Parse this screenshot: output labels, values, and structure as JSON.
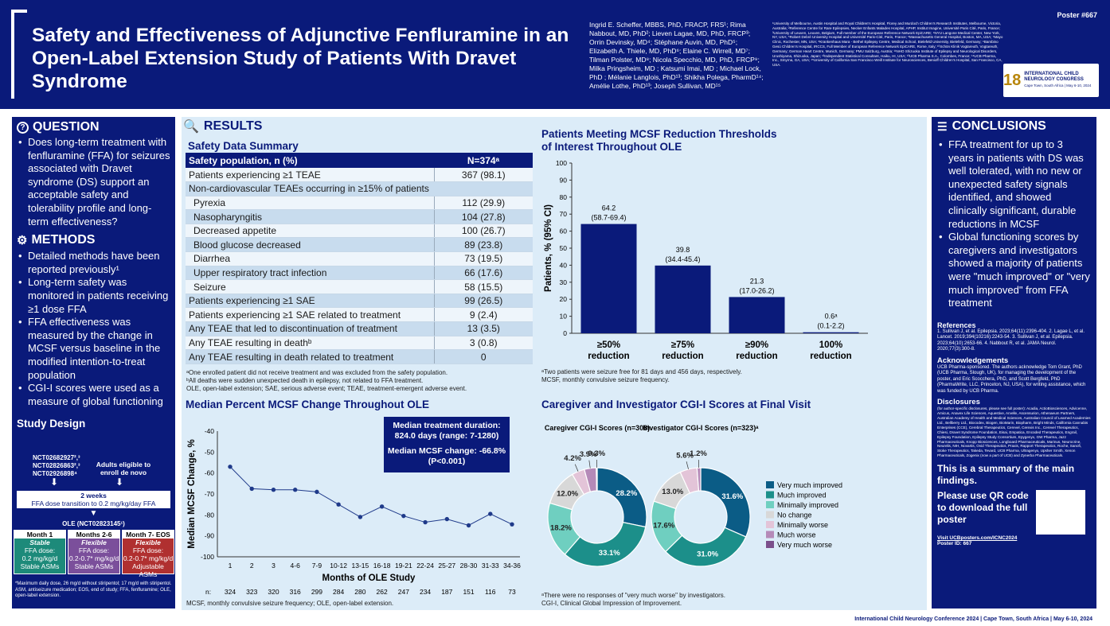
{
  "header": {
    "title": "Safety and Effectiveness of Adjunctive Fenfluramine in an Open-Label Extension Study of Patients With Dravet Syndrome",
    "poster_no": "Poster #667",
    "authors": "Ingrid E. Scheffer, MBBS, PhD, FRACP, FRS¹; Rima Nabbout, MD, PhD²; Lieven Lagae, MD, PhD, FRCP³; Orrin Devinsky, MD⁴; Stéphane Auvin, MD, PhD⁵; Elizabeth A. Thiele, MD, PhD⁶; Elaine C. Wirrell, MD⁷; Tilman Polster, MD⁸; Nicola Specchio, MD, PhD, FRCP⁹; Milka Pringsheim, MD ; Katsumi Imai, MD ; Michael Lock, PhD ; Mélanie Langlois, PhD¹³; Shikha Polega, PharmD¹⁴; Amélie Lothe, PhD¹³; Joseph Sullivan, MD¹⁵",
    "affiliations": "¹University of Melbourne, Austin Hospital and Royal Children's Hospital, Florey and Murdoch Children's Research Institutes, Melbourne, Victoria, Australia; ²Reference Centre for Rare Epilepsies, Necker Enfants Malades Hospital, APHP, Institut Imagine, Université Paris Cité, Paris, France; ³University of Leuven, Leuven, Belgium, Full member of the European Reference Network EpiCARE; ⁴NYU Langone Medical Center, New York, NY, USA; ⁵Robert Debré University Hospital and Université Paris-Cité, Paris, France; ⁶Massachusetts General Hospital, Boston, MA, USA; ⁷Mayo Clinic, Rochester, MN, USA; ⁸Krankenhaus Mara - Bethel Epilepsy Centre, Medical School, Bielefeld University, Bielefeld, Germany; ⁹Bambino Gesù Children's Hospital, IRCCS, Full Member of European Reference Network EpiCARE, Rome, Italy; ¹⁰Schön Klinik Vogtareuth, Vogtareuth, Germany; German Heart Centre, Munich, Germany; PMU Salzburg, Austria; ¹¹NHO Shizuoka Institute of Epilepsy and Neurological Disorders, Urushiyama, Shizuoka, Japan; ¹²Independent Statistical Consultant, Haiku, HI, USA; ¹³UCB Pharma S.A., Colombes, France; ¹⁴UCB Pharma, Inc., Smyrna, GA, USA; ¹⁵University of California San Francisco Weill Institute for Neurosciences, Benioff Children's Hospital, San Francisco, CA, USA.",
    "logo_number": "18",
    "logo_text": "INTERNATIONAL CHILD NEUROLOGY CONGRESS",
    "logo_sub": "Cape Town, South Africa | May 6-10, 2024"
  },
  "question": {
    "heading": "QUESTION",
    "bullets": [
      "Does long-term treatment with fenfluramine (FFA) for seizures associated with Dravet syndrome (DS) support an acceptable safety and tolerability profile and long-term effectiveness?"
    ]
  },
  "methods": {
    "heading": "METHODS",
    "bullets": [
      "Detailed methods have been reported previously¹",
      "Long-term safety was monitored in patients receiving ≥1 dose FFA",
      "FFA effectiveness was measured by the change in MCSF versus baseline in the modified intention-to-treat population",
      "CGI-I scores were used as a measure of global functioning"
    ]
  },
  "study_design": {
    "heading": "Study Design",
    "ncts": [
      "NCT02682927²,³",
      "NCT02826863²,³",
      "NCT02926898⁴"
    ],
    "adults": "Adults eligible to enroll de novo",
    "weeks": "2 weeks",
    "transition": "FFA dose transition to 0.2 mg/kg/day FFA",
    "ole": "OLE (NCT02823145¹)",
    "boxes": [
      {
        "h": "Month 1",
        "t": "Stable",
        "d": "FFA dose:",
        "d2": "0.2 mg/kg/d",
        "d3": "Stable ASMs"
      },
      {
        "h": "Months 2-6",
        "t": "Flexible",
        "d": "FFA dose:",
        "d2": "0.2-0.7* mg/kg/d",
        "d3": "Stable ASMs"
      },
      {
        "h": "Month 7- EOS",
        "t": "Flexible",
        "d": "FFA dose:",
        "d2": "0.2-0.7* mg/kg/d",
        "d3": "Adjustable ASMs"
      }
    ],
    "foot": "*Maximum daily dose, 26 mg/d without stiripentol; 17 mg/d with stiripentol.",
    "abbr": "ASM, antiseizure medication; EOS, end of study; FFA, fenfluramine; OLE, open-label extension."
  },
  "results": {
    "heading": "RESULTS",
    "safety_title": "Safety Data Summary",
    "col1": "Safety population, n (%)",
    "col2": "N=374ᵃ",
    "rows": [
      [
        "Patients experiencing ≥1 TEAE",
        "367 (98.1)"
      ],
      [
        "Non-cardiovascular TEAEs occurring in ≥15% of patients",
        ""
      ],
      [
        "Pyrexia",
        "112 (29.9)"
      ],
      [
        "Nasopharyngitis",
        "104 (27.8)"
      ],
      [
        "Decreased appetite",
        "100 (26.7)"
      ],
      [
        "Blood glucose decreased",
        "89 (23.8)"
      ],
      [
        "Diarrhea",
        "73 (19.5)"
      ],
      [
        "Upper respiratory tract infection",
        "66 (17.6)"
      ],
      [
        "Seizure",
        "58 (15.5)"
      ],
      [
        "Patients experiencing ≥1 SAE",
        "99 (26.5)"
      ],
      [
        "Patients experiencing ≥1 SAE related to treatment",
        "9 (2.4)"
      ],
      [
        "Any TEAE that led to discontinuation of treatment",
        "13 (3.5)"
      ],
      [
        "Any TEAE resulting in deathᵇ",
        "3 (0.8)"
      ],
      [
        "Any TEAE resulting in death related to treatment",
        "0"
      ]
    ],
    "fn1": "ᵃOne enrolled patient did not receive treatment and was excluded from the safety population.",
    "fn2": "ᵇAll deaths were sudden unexpected death in epilepsy, not related to FFA treatment.",
    "fn3": "OLE, open-label extension; SAE, serious adverse event; TEAE, treatment-emergent adverse event."
  },
  "line_chart": {
    "title": "Median Percent MCSF Change Throughout OLE",
    "callout1": "Median treatment duration: 824.0 days (range: 7-1280)",
    "callout2": "Median MCSF change: -66.8% (P<0.001)",
    "foot": "MCSF, monthly convulsive seizure frequency; OLE, open-label extension.",
    "n_label": "n:"
  },
  "bar_chart": {
    "title": "Patients Meeting MCSF Reduction Thresholds of Interest Throughout OLE",
    "foot1": "ᵃTwo patients were seizure free for 81 days and 456 days, respectively.",
    "foot2": "MCSF, monthly convulsive seizure frequency."
  },
  "cgi": {
    "title": "Caregiver and Investigator CGI-I Scores at Final Visit",
    "foot1": "ᵃThere were no responses of \"very much worse\" by investigators.",
    "foot2": "CGI-I, Clinical Global Impression of Improvement."
  },
  "conclusions": {
    "heading": "CONCLUSIONS",
    "bullets": [
      "FFA treatment for up to 3 years in patients with DS was well tolerated, with no new or unexpected safety signals identified, and showed clinically significant, durable reductions in MCSF",
      "Global functioning scores by caregivers and investigators showed a majority of patients were \"much improved\" or \"very much improved\" from FFA treatment"
    ],
    "refs_h": "References",
    "refs": "1. Sullivan J, et al. Epilepsia. 2023;64(11):2396-404. 2. Lagae L, et al. Lancet. 2019;394(10216):2243-54. 3. Sullivan J, et al. Epilepsia. 2023;64(10):2653-66. 4. Nabbout R, et al. JAMA Neurol. 2020;77(3):300-8.",
    "ack_h": "Acknowledgements",
    "ack": "UCB Pharma-sponsored. The authors acknowledge Tom Grant, PhD (UCB Pharma, Slough, UK), for managing the development of the poster, and Eric Scocchera, PhD, and Scott Bergfeld, PhD (PharmaWrite, LLC, Princeton, NJ, USA), for writing assistance, which was funded by UCB Pharma.",
    "disc_h": "Disclosures",
    "disc": "(for author-specific disclosures, please see full poster): Acadia, ActioBiosciences, Advicenne, Amicus, Anavex Life Sciences, Aquestive, Arvelle, Ascensurion, Athenaeum Partners, Australian Academy of Health and Medical Sciences, Australian Council of Learned Academies Ltd., Bellberry Ltd., Biocodex, Biogen, BioMarin, Biopharm, Bright Minds, California Cannabis Enterprises (CCE), Cerebral Therapeutics, Cerevel, Cerexis Inc., Cerevel Therapeutics, Chiesi, Dravet Syndrome Foundation, Eisai, Empatica, Encoded Therapeutics, Engrail, Epilepsy Foundation, Epilepsy Study Consortium, Epygenyx, GW Pharma, Jazz Pharmaceuticals, Knopp Biosciences, Longboard Pharmaceuticals, Marinus, Neurocrine, Neurelis, NIH, Novartis, Ovid Therapeutics, Praxis, Rapport Therapeutics, Roche, Sanofi, Stoke Therapeutics, Takeda, Tevard, UCB Pharma, Ultragenyx, Upsher Smith, Xenon Pharmaceuticals, Zogenix (now a part of UCB) and Zynerba Pharmaceuticals.",
    "summary": "This is a summary of the main findings.",
    "qr_text": "Please use QR code to download the full poster",
    "visit": "Visit UCBposters.com/ICNC2024",
    "poster_id": "Poster ID: 667"
  },
  "footer": "International Child Neurology Conference 2024 | Cape Town, South Africa | May 6-10, 2024",
  "colors": {
    "navy": "#0a1a7a",
    "panel": "#dcecf8",
    "very_much_improved": "#0b5c86",
    "much_improved": "#1c8f8a",
    "minimally_improved": "#6fcfc0",
    "no_change": "#d8d8d8",
    "minimally_worse": "#e3c4d8",
    "much_worse": "#b58ab8",
    "very_much_worse": "#7b4f8b",
    "month1": "#1d8a7a",
    "months2_6": "#7b4f9b",
    "month7": "#b03030"
  },
  "chart_data": [
    {
      "type": "line",
      "title": "Median Percent MCSF Change Throughout OLE",
      "xlabel": "Months of OLE Study",
      "ylabel": "Median MCSF Change, %",
      "ylim": [
        -100,
        -40
      ],
      "yticks": [
        -40,
        -50,
        -60,
        -70,
        -80,
        -90,
        -100
      ],
      "categories": [
        "1",
        "2",
        "3",
        "4-6",
        "7-9",
        "10-12",
        "13-15",
        "16-18",
        "19-21",
        "22-24",
        "25-27",
        "28-30",
        "31-33",
        "34-36"
      ],
      "values": [
        -57,
        -67.5,
        -68,
        -68,
        -69,
        -75,
        -81,
        -76,
        -80.5,
        -83.5,
        -82,
        -85,
        -79.5,
        -84.5
      ],
      "n": [
        "324",
        "323",
        "320",
        "316",
        "299",
        "284",
        "280",
        "262",
        "247",
        "234",
        "187",
        "151",
        "116",
        "73"
      ]
    },
    {
      "type": "bar",
      "title": "Patients Meeting MCSF Reduction Thresholds of Interest Throughout OLE",
      "ylabel": "Patients, % (95% CI)",
      "ylim": [
        0,
        100
      ],
      "yticks": [
        0,
        10,
        20,
        30,
        40,
        50,
        60,
        70,
        80,
        90,
        100
      ],
      "categories": [
        "≥50% reduction",
        "≥75% reduction",
        "≥90% reduction",
        "100% reduction"
      ],
      "values": [
        64.2,
        39.8,
        21.3,
        0.6
      ],
      "labels": [
        "64.2",
        "39.8",
        "21.3",
        "0.6ᵃ"
      ],
      "ci": [
        "(58.7-69.4)",
        "(34.4-45.4)",
        "(17.0-26.2)",
        "(0.1-2.2)"
      ]
    },
    {
      "type": "pie",
      "title": "Caregiver CGI-I Scores (n=308)",
      "labels": [
        "Very much improved",
        "Much improved",
        "Minimally improved",
        "No change",
        "Minimally worse",
        "Much worse",
        "Very much worse"
      ],
      "values": [
        28.2,
        33.1,
        18.2,
        12.0,
        4.2,
        3.9,
        0.3
      ],
      "display": [
        "28.2%",
        "33.1%",
        "18.2%",
        "12.0%",
        "4.2%",
        "3.9%",
        "0.3%"
      ]
    },
    {
      "type": "pie",
      "title": "Investigator CGI-I Scores (n=323)ᵃ",
      "labels": [
        "Very much improved",
        "Much improved",
        "Minimally improved",
        "No change",
        "Minimally worse",
        "Much worse"
      ],
      "values": [
        31.6,
        31.0,
        17.6,
        13.0,
        5.6,
        1.2
      ],
      "display": [
        "31.6%",
        "31.0%",
        "17.6%",
        "13.0%",
        "5.6%",
        "1.2%"
      ]
    }
  ]
}
